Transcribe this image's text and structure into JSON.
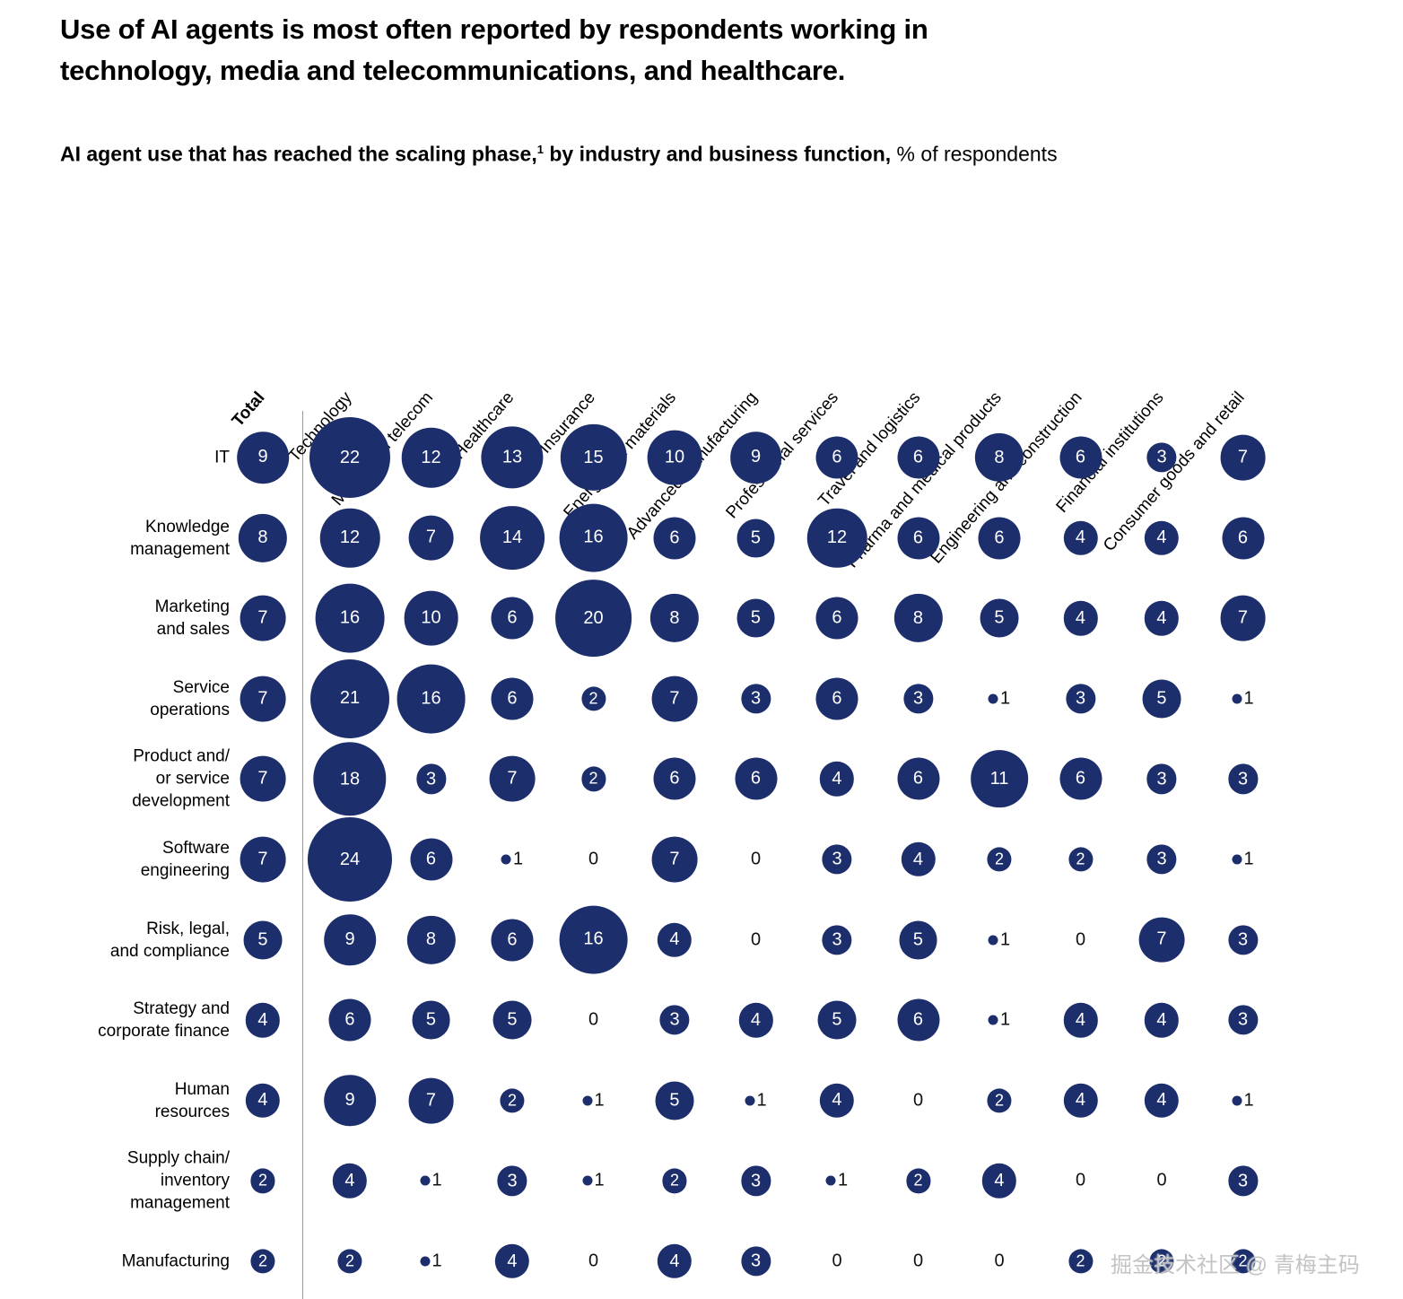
{
  "title_lines": [
    "Use of AI agents is most often reported by respondents working in",
    "technology, media and telecommunications, and healthcare."
  ],
  "subtitle": {
    "bold_part1": "AI agent use that has reached the scaling phase,",
    "footnote_marker": "1",
    "bold_part2": " by industry and business function,",
    "regular_part": " % of respondents"
  },
  "watermark": "掘金技术社区 @ 青梅主码",
  "colors": {
    "bubble_navy": "#1c2e6b",
    "text": "#000000",
    "divider_gray": "#9b9b9b"
  },
  "chart_data": {
    "type": "bubble-matrix",
    "value_unit": "% of respondents",
    "legend_position": "none",
    "grid": false,
    "columns": [
      "Total",
      "Technology",
      "Media and telecom",
      "Healthcare",
      "Insurance",
      "Energy and materials",
      "Advanced manufacturing",
      "Professional services",
      "Travel and logistics",
      "Pharma and medical products",
      "Engineering and construction",
      "Financial institutions",
      "Consumer goods and retail"
    ],
    "rows": [
      {
        "label": "IT",
        "label_lines": [
          "IT"
        ],
        "values": [
          9,
          22,
          12,
          13,
          15,
          10,
          9,
          6,
          6,
          8,
          6,
          3,
          7
        ]
      },
      {
        "label": "Knowledge management",
        "label_lines": [
          "Knowledge",
          "management"
        ],
        "values": [
          8,
          12,
          7,
          14,
          16,
          6,
          5,
          12,
          6,
          6,
          4,
          4,
          6
        ]
      },
      {
        "label": "Marketing and sales",
        "label_lines": [
          "Marketing",
          "and sales"
        ],
        "values": [
          7,
          16,
          10,
          6,
          20,
          8,
          5,
          6,
          8,
          5,
          4,
          4,
          7
        ]
      },
      {
        "label": "Service operations",
        "label_lines": [
          "Service",
          "operations"
        ],
        "values": [
          7,
          21,
          16,
          6,
          2,
          7,
          3,
          6,
          3,
          1,
          3,
          5,
          1
        ]
      },
      {
        "label": "Product and/or service development",
        "label_lines": [
          "Product and/",
          "or service",
          "development"
        ],
        "values": [
          7,
          18,
          3,
          7,
          2,
          6,
          6,
          4,
          6,
          11,
          6,
          3,
          3
        ]
      },
      {
        "label": "Software engineering",
        "label_lines": [
          "Software",
          "engineering"
        ],
        "values": [
          7,
          24,
          6,
          1,
          0,
          7,
          0,
          3,
          4,
          2,
          2,
          3,
          1
        ]
      },
      {
        "label": "Risk, legal, and compliance",
        "label_lines": [
          "Risk, legal,",
          "and compliance"
        ],
        "values": [
          5,
          9,
          8,
          6,
          16,
          4,
          0,
          3,
          5,
          1,
          0,
          7,
          3
        ]
      },
      {
        "label": "Strategy and corporate finance",
        "label_lines": [
          "Strategy and",
          "corporate finance"
        ],
        "values": [
          4,
          6,
          5,
          5,
          0,
          3,
          4,
          5,
          6,
          1,
          4,
          4,
          3
        ]
      },
      {
        "label": "Human resources",
        "label_lines": [
          "Human",
          "resources"
        ],
        "values": [
          4,
          9,
          7,
          2,
          1,
          5,
          1,
          4,
          0,
          2,
          4,
          4,
          1
        ]
      },
      {
        "label": "Supply chain/inventory management",
        "label_lines": [
          "Supply chain/",
          "inventory",
          "management"
        ],
        "values": [
          2,
          4,
          1,
          3,
          1,
          2,
          3,
          1,
          2,
          4,
          0,
          0,
          3
        ]
      },
      {
        "label": "Manufacturing",
        "label_lines": [
          "Manufacturing"
        ],
        "values": [
          2,
          2,
          1,
          4,
          0,
          4,
          3,
          0,
          0,
          0,
          2,
          2,
          2
        ]
      }
    ],
    "bubble_color": "#1c2e6b"
  }
}
